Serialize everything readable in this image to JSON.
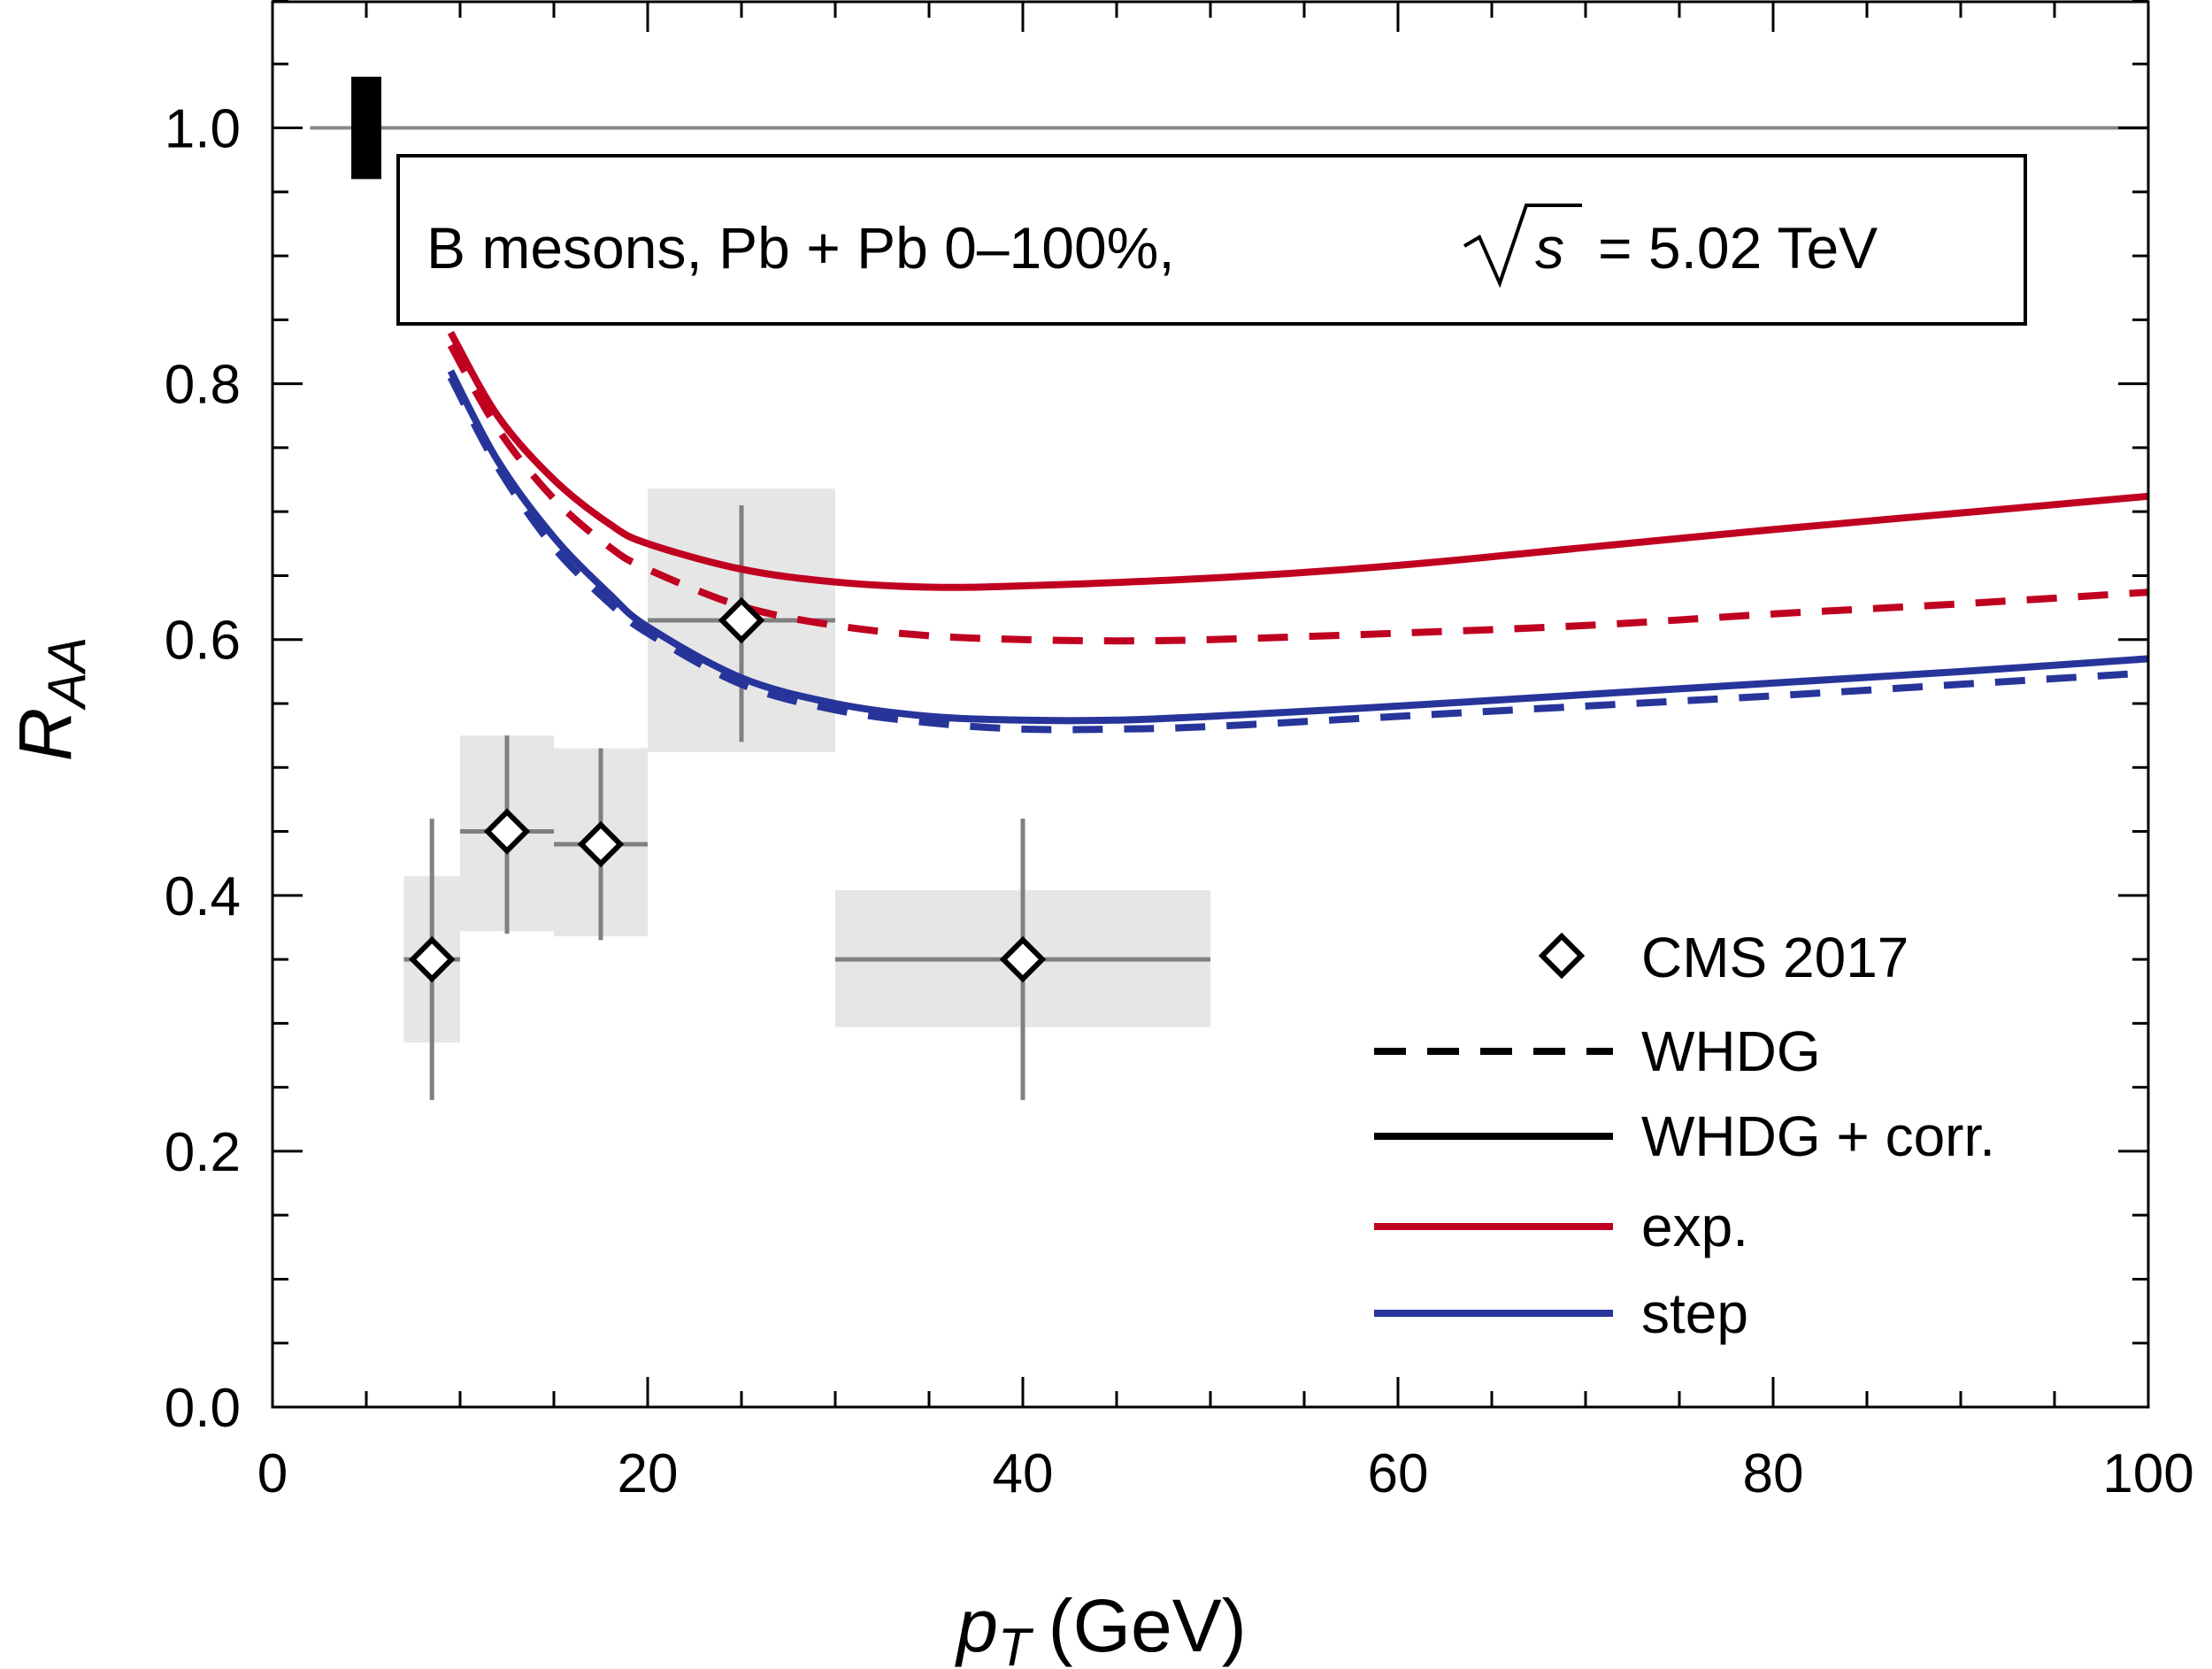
{
  "chart_data": {
    "type": "line",
    "xlabel": "p",
    "xlabel_sub": "T",
    "xlabel_unit": "(GeV)",
    "ylabel": "R",
    "ylabel_sub": "AA",
    "xlim": [
      0,
      100
    ],
    "ylim": [
      0,
      1.1
    ],
    "x_ticks": [
      0,
      20,
      40,
      60,
      80,
      100
    ],
    "x_tick_labels": [
      "0",
      "20",
      "40",
      "60",
      "80",
      "100"
    ],
    "y_ticks": [
      0,
      0.2,
      0.4,
      0.6,
      0.8,
      1.0
    ],
    "y_tick_labels": [
      "0.0",
      "0.2",
      "0.4",
      "0.6",
      "0.8",
      "1.0"
    ],
    "annotation": {
      "prefix": "B mesons, Pb + Pb 0–100%,",
      "sqrt_var": "s",
      "suffix": "= 5.02 TeV"
    },
    "reference_line": {
      "y": 1.0,
      "color": "#888888"
    },
    "normalization_uncertainty": {
      "x_range": [
        4.2,
        5.8
      ],
      "y_range": [
        0.96,
        1.04
      ]
    },
    "legend": [
      {
        "label": "CMS 2017",
        "kind": "marker"
      },
      {
        "label": "WHDG",
        "kind": "dashed",
        "color": "#000000"
      },
      {
        "label": "WHDG + corr.",
        "kind": "solid",
        "color": "#000000"
      },
      {
        "label": "exp.",
        "kind": "solid",
        "color": "#c00020"
      },
      {
        "label": "step",
        "kind": "solid",
        "color": "#27359a"
      }
    ],
    "data_points": {
      "name": "CMS 2017",
      "points": [
        {
          "x": 8.5,
          "y": 0.35,
          "x_err": [
            7,
            10
          ],
          "y_stat": [
            0.24,
            0.46
          ],
          "y_sys": [
            0.285,
            0.415
          ]
        },
        {
          "x": 12.5,
          "y": 0.45,
          "x_err": [
            10,
            15
          ],
          "y_stat": [
            0.37,
            0.525
          ],
          "y_sys": [
            0.372,
            0.525
          ]
        },
        {
          "x": 17.5,
          "y": 0.44,
          "x_err": [
            15,
            20
          ],
          "y_stat": [
            0.365,
            0.515
          ],
          "y_sys": [
            0.368,
            0.515
          ]
        },
        {
          "x": 25,
          "y": 0.615,
          "x_err": [
            20,
            30
          ],
          "y_stat": [
            0.52,
            0.705
          ],
          "y_sys": [
            0.512,
            0.718
          ]
        },
        {
          "x": 40,
          "y": 0.35,
          "x_err": [
            30,
            50
          ],
          "y_stat": [
            0.24,
            0.46
          ],
          "y_sys": [
            0.297,
            0.404
          ]
        }
      ]
    },
    "series": [
      {
        "name": "exp. WHDG + corr.",
        "color": "#c00020",
        "style": "solid",
        "x": [
          9.5,
          12,
          15,
          18,
          20,
          25,
          30,
          35,
          40,
          50,
          60,
          70,
          80,
          90,
          100
        ],
        "y": [
          0.84,
          0.775,
          0.725,
          0.69,
          0.675,
          0.655,
          0.645,
          0.641,
          0.642,
          0.648,
          0.658,
          0.672,
          0.686,
          0.699,
          0.712
        ]
      },
      {
        "name": "exp. WHDG",
        "color": "#c00020",
        "style": "dashed",
        "x": [
          9.5,
          12,
          15,
          18,
          20,
          25,
          30,
          35,
          40,
          45,
          50,
          60,
          70,
          80,
          90,
          100
        ],
        "y": [
          0.83,
          0.765,
          0.71,
          0.672,
          0.655,
          0.626,
          0.611,
          0.603,
          0.6,
          0.599,
          0.6,
          0.605,
          0.611,
          0.62,
          0.628,
          0.637
        ]
      },
      {
        "name": "step WHDG + corr.",
        "color": "#27359a",
        "style": "solid",
        "x": [
          9.5,
          12,
          15,
          18,
          20,
          25,
          30,
          35,
          40,
          45,
          50,
          60,
          70,
          80,
          90,
          100
        ],
        "y": [
          0.81,
          0.74,
          0.68,
          0.635,
          0.61,
          0.57,
          0.55,
          0.54,
          0.537,
          0.537,
          0.54,
          0.548,
          0.557,
          0.566,
          0.575,
          0.585
        ]
      },
      {
        "name": "step WHDG",
        "color": "#27359a",
        "style": "dashed",
        "x": [
          9.5,
          12,
          15,
          18,
          20,
          25,
          30,
          35,
          40,
          45,
          50,
          60,
          70,
          80,
          90,
          100
        ],
        "y": [
          0.805,
          0.735,
          0.672,
          0.628,
          0.605,
          0.565,
          0.545,
          0.535,
          0.53,
          0.53,
          0.532,
          0.54,
          0.548,
          0.556,
          0.565,
          0.574
        ]
      }
    ]
  }
}
